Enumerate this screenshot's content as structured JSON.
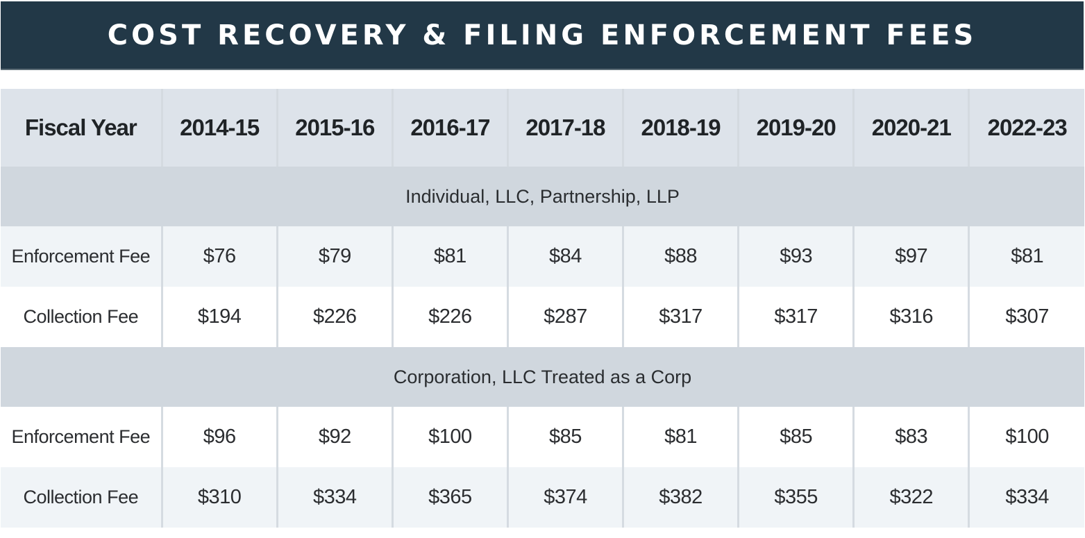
{
  "title": "COST RECOVERY & FILING ENFORCEMENT FEES",
  "table": {
    "header_label": "Fiscal Year",
    "years": [
      "2014-15",
      "2015-16",
      "2016-17",
      "2017-18",
      "2018-19",
      "2019-20",
      "2020-21",
      "2022-23"
    ],
    "sections": [
      {
        "name": "Individual, LLC, Partnership, LLP",
        "rows": [
          {
            "label": "Enforcement Fee",
            "values": [
              "$76",
              "$79",
              "$81",
              "$84",
              "$88",
              "$93",
              "$97",
              "$81"
            ]
          },
          {
            "label": "Collection Fee",
            "values": [
              "$194",
              "$226",
              "$226",
              "$287",
              "$317",
              "$317",
              "$316",
              "$307"
            ]
          }
        ]
      },
      {
        "name": "Corporation, LLC Treated as a Corp",
        "rows": [
          {
            "label": "Enforcement Fee",
            "values": [
              "$96",
              "$92",
              "$100",
              "$85",
              "$81",
              "$85",
              "$83",
              "$100"
            ]
          },
          {
            "label": "Collection Fee",
            "values": [
              "$310",
              "$334",
              "$365",
              "$374",
              "$382",
              "$355",
              "$322",
              "$334"
            ]
          }
        ]
      }
    ]
  },
  "colors": {
    "title_bg": "#223847",
    "title_text": "#ffffff",
    "header_bg": "#dde3ea",
    "section_bg": "#d0d7de",
    "row_shade": "#f0f4f7",
    "row_plain": "#ffffff",
    "grid": "#d5dbe1"
  }
}
